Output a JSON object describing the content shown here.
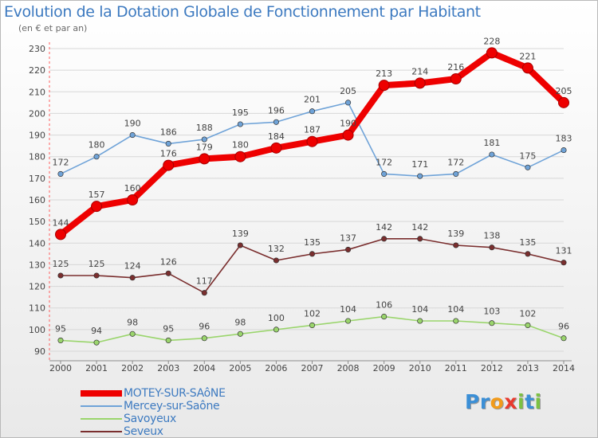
{
  "title": "Evolution de la Dotation Globale de Fonctionnement par Habitant",
  "subtitle": "(en € et par an)",
  "logo": {
    "text": "Proxiti",
    "letters": [
      {
        "ch": "P",
        "color": "#3b8fd6"
      },
      {
        "ch": "r",
        "color": "#3b8fd6"
      },
      {
        "ch": "o",
        "color": "#f29b1b"
      },
      {
        "ch": "x",
        "color": "#e83a2e"
      },
      {
        "ch": "i",
        "color": "#7cc142"
      },
      {
        "ch": "t",
        "color": "#3b8fd6"
      },
      {
        "ch": "i",
        "color": "#7cc142"
      }
    ]
  },
  "chart_data": {
    "type": "line",
    "title": "Evolution de la Dotation Globale de Fonctionnement par Habitant",
    "subtitle": "(en € et par an)",
    "x": [
      "2000",
      "2001",
      "2002",
      "2003",
      "2004",
      "2005",
      "2006",
      "2007",
      "2008",
      "2009",
      "2010",
      "2011",
      "2012",
      "2013",
      "2014"
    ],
    "ylim": [
      90,
      230
    ],
    "yticks": [
      90,
      100,
      110,
      120,
      130,
      140,
      150,
      160,
      170,
      180,
      190,
      200,
      210,
      220,
      230
    ],
    "grid": "horizontal",
    "legend_position": "bottom-left",
    "series": [
      {
        "name": "MOTEY-SUR-SAôNE",
        "color": "#ee0000",
        "values": [
          144,
          157,
          160,
          176,
          179,
          180,
          184,
          187,
          190,
          213,
          214,
          216,
          228,
          221,
          205
        ]
      },
      {
        "name": "Mercey-sur-Saône",
        "color": "#6fa3d8",
        "values": [
          172,
          180,
          190,
          186,
          188,
          195,
          196,
          201,
          205,
          172,
          171,
          172,
          181,
          175,
          183
        ]
      },
      {
        "name": "Savoyeux",
        "color": "#9ad56c",
        "values": [
          95,
          94,
          98,
          95,
          96,
          98,
          100,
          102,
          104,
          106,
          104,
          104,
          103,
          102,
          96
        ]
      },
      {
        "name": "Seveux",
        "color": "#7a2e2e",
        "values": [
          125,
          125,
          124,
          126,
          117,
          139,
          132,
          135,
          137,
          142,
          142,
          139,
          138,
          135,
          131
        ]
      }
    ]
  }
}
